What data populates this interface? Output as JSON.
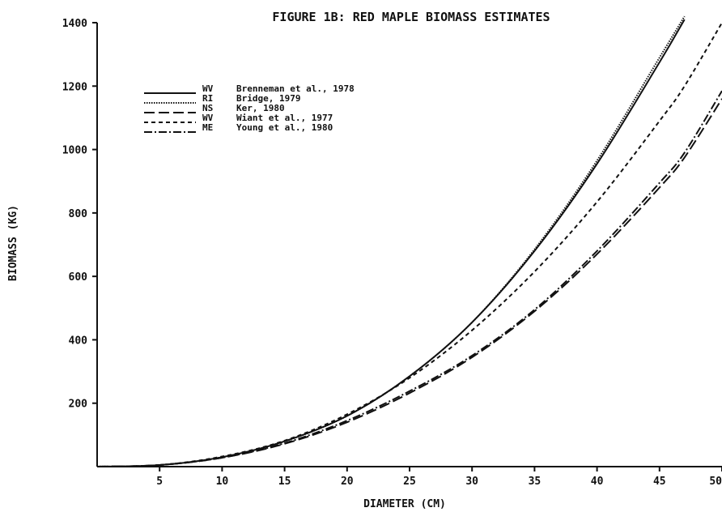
{
  "chart_data": {
    "type": "line",
    "title": "FIGURE 1B: RED MAPLE BIOMASS ESTIMATES",
    "xlabel": "DIAMETER (CM)",
    "ylabel": "BIOMASS (KG)",
    "xlim": [
      0,
      50
    ],
    "ylim": [
      0,
      1400
    ],
    "xticks": [
      "5",
      "10",
      "15",
      "20",
      "25",
      "30",
      "35",
      "40",
      "45",
      "50"
    ],
    "yticks": [
      "200",
      "400",
      "600",
      "800",
      "1000",
      "1200",
      "1400"
    ],
    "grid": false,
    "legend_position": "top-left",
    "x": [
      5,
      10,
      15,
      20,
      25,
      30,
      35,
      40,
      45,
      47,
      50
    ],
    "series": [
      {
        "name": "WV Brenneman et al., 1978",
        "style": "solid",
        "values": [
          5,
          30,
          80,
          160,
          285,
          455,
          680,
          955,
          1275,
          1410,
          null
        ]
      },
      {
        "name": "RI Bridge, 1979",
        "style": "dotted",
        "values": [
          5,
          30,
          80,
          160,
          285,
          455,
          685,
          965,
          1290,
          1420,
          null
        ]
      },
      {
        "name": "NS Ker, 1980",
        "style": "long-dash",
        "values": [
          5,
          28,
          72,
          140,
          232,
          345,
          490,
          670,
          880,
          975,
          1160
        ]
      },
      {
        "name": "WV Wiant et al., 1977",
        "style": "short-dash",
        "values": [
          5,
          32,
          82,
          165,
          280,
          430,
          615,
          835,
          1090,
          1200,
          1400
        ]
      },
      {
        "name": "ME Young et al., 1980",
        "style": "dash-dot",
        "values": [
          5,
          28,
          74,
          145,
          238,
          350,
          495,
          680,
          895,
          990,
          1185
        ]
      }
    ]
  },
  "legend": [
    {
      "state": "WV",
      "source": "Brenneman et al., 1978"
    },
    {
      "state": "RI",
      "source": "Bridge, 1979"
    },
    {
      "state": "NS",
      "source": "Ker, 1980"
    },
    {
      "state": "WV",
      "source": "Wiant et al., 1977"
    },
    {
      "state": "ME",
      "source": "Young et al., 1980"
    }
  ]
}
